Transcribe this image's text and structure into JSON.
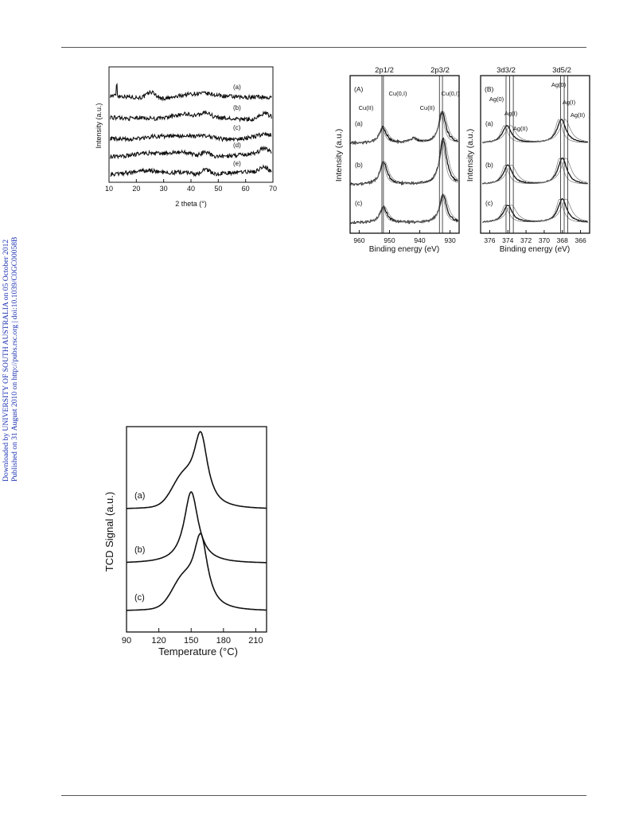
{
  "side_note": {
    "line1": "Downloaded by UNIVERSITY OF SOUTH AUSTRALIA on 05 October 2012",
    "line2": "Published on 31 August 2010 on http://pubs.rsc.org | doi:10.1039/C0GC00058B",
    "color": "#1a2fb0"
  },
  "chart_data": [
    {
      "id": "xrd",
      "type": "line",
      "xlabel": "2 theta (°)",
      "ylabel": "Intensity (a.u.)",
      "xlim": [
        10,
        70
      ],
      "xticks": [
        10,
        20,
        30,
        40,
        50,
        60,
        70
      ],
      "yticks": "none",
      "grid": false,
      "series": [
        {
          "label": "(a)",
          "peaks": [
            [
              12.8,
              5.5
            ],
            [
              25.5,
              2.5
            ],
            [
              38.2,
              0.9
            ],
            [
              44.5,
              0.8
            ],
            [
              64.6,
              0.7
            ]
          ]
        },
        {
          "label": "(b)",
          "peaks": [
            [
              22,
              0.6
            ],
            [
              37,
              1.0
            ],
            [
              45.4,
              1.6
            ],
            [
              66.8,
              2.0
            ]
          ]
        },
        {
          "label": "(c)",
          "peaks": [
            [
              26,
              0.4
            ],
            [
              45.4,
              0.8
            ],
            [
              66.8,
              1.0
            ]
          ]
        },
        {
          "label": "(d)",
          "peaks": [
            [
              22,
              0.5
            ],
            [
              37,
              1.0
            ],
            [
              45.4,
              1.7
            ],
            [
              66.8,
              2.1
            ]
          ]
        },
        {
          "label": "(e)",
          "peaks": [
            [
              24,
              0.6
            ],
            [
              37,
              1.0
            ],
            [
              45.4,
              1.9
            ],
            [
              66.8,
              2.2
            ]
          ]
        }
      ]
    },
    {
      "id": "xps_cu",
      "type": "line",
      "panel_label": "(A)",
      "xlabel": "Binding energy (eV)",
      "ylabel": "Intensity (a.u.)",
      "xlim": [
        963,
        927
      ],
      "reversed_x": true,
      "xticks": [
        960,
        950,
        940,
        930
      ],
      "grid": false,
      "top_labels": [
        "2p1/2",
        "2p3/2"
      ],
      "reference_lines_eV": [
        952.5,
        952.0,
        933.5,
        932.5
      ],
      "annotations": [
        "Cu(II)",
        "Cu(0,I)",
        "Cu(II)",
        "Cu(0,I)"
      ],
      "series": [
        {
          "label": "(a)",
          "peaks": [
            [
              952.2,
              0.9
            ],
            [
              942,
              0.25
            ],
            [
              932.6,
              1.8
            ]
          ]
        },
        {
          "label": "(b)",
          "peaks": [
            [
              952.0,
              1.3
            ],
            [
              932.3,
              2.6
            ]
          ]
        },
        {
          "label": "(c)",
          "peaks": [
            [
              952.0,
              0.9
            ],
            [
              932.3,
              1.6
            ]
          ]
        }
      ]
    },
    {
      "id": "xps_ag",
      "type": "line",
      "panel_label": "(B)",
      "xlabel": "Binding energy (eV)",
      "ylabel": "Intensity (a.u.)",
      "xlim": [
        377,
        365
      ],
      "reversed_x": true,
      "xticks": [
        376,
        374,
        372,
        370,
        368,
        366
      ],
      "grid": false,
      "top_labels": [
        "3d3/2",
        "3d5/2"
      ],
      "reference_lines_eV": [
        374.2,
        373.8,
        373.4,
        368.2,
        367.8,
        367.4
      ],
      "annotations": [
        "Ag(0)",
        "Ag(I)",
        "Ag(II)",
        "Ag(0)",
        "Ag(I)",
        "Ag(II)"
      ],
      "series": [
        {
          "label": "(a)",
          "peaks": [
            [
              374.1,
              1.0
            ],
            [
              368.1,
              1.35
            ]
          ]
        },
        {
          "label": "(b)",
          "peaks": [
            [
              374.0,
              1.1
            ],
            [
              368.0,
              1.5
            ]
          ]
        },
        {
          "label": "(c)",
          "peaks": [
            [
              374.0,
              1.0
            ],
            [
              368.0,
              1.35
            ]
          ]
        }
      ]
    },
    {
      "id": "tpr",
      "type": "line",
      "xlabel": "Temperature (°C)",
      "ylabel": "TCD Signal (a.u.)",
      "xlim": [
        90,
        220
      ],
      "xticks": [
        90,
        120,
        150,
        180,
        210
      ],
      "grid": false,
      "series": [
        {
          "label": "(a)",
          "peak_x": 159,
          "shoulder_x": 142,
          "height": 1.0
        },
        {
          "label": "(b)",
          "peak_x": 150,
          "shoulder_x": 0,
          "height": 1.0
        },
        {
          "label": "(c)",
          "peak_x": 159,
          "shoulder_x": 142,
          "height": 1.0
        }
      ]
    }
  ]
}
